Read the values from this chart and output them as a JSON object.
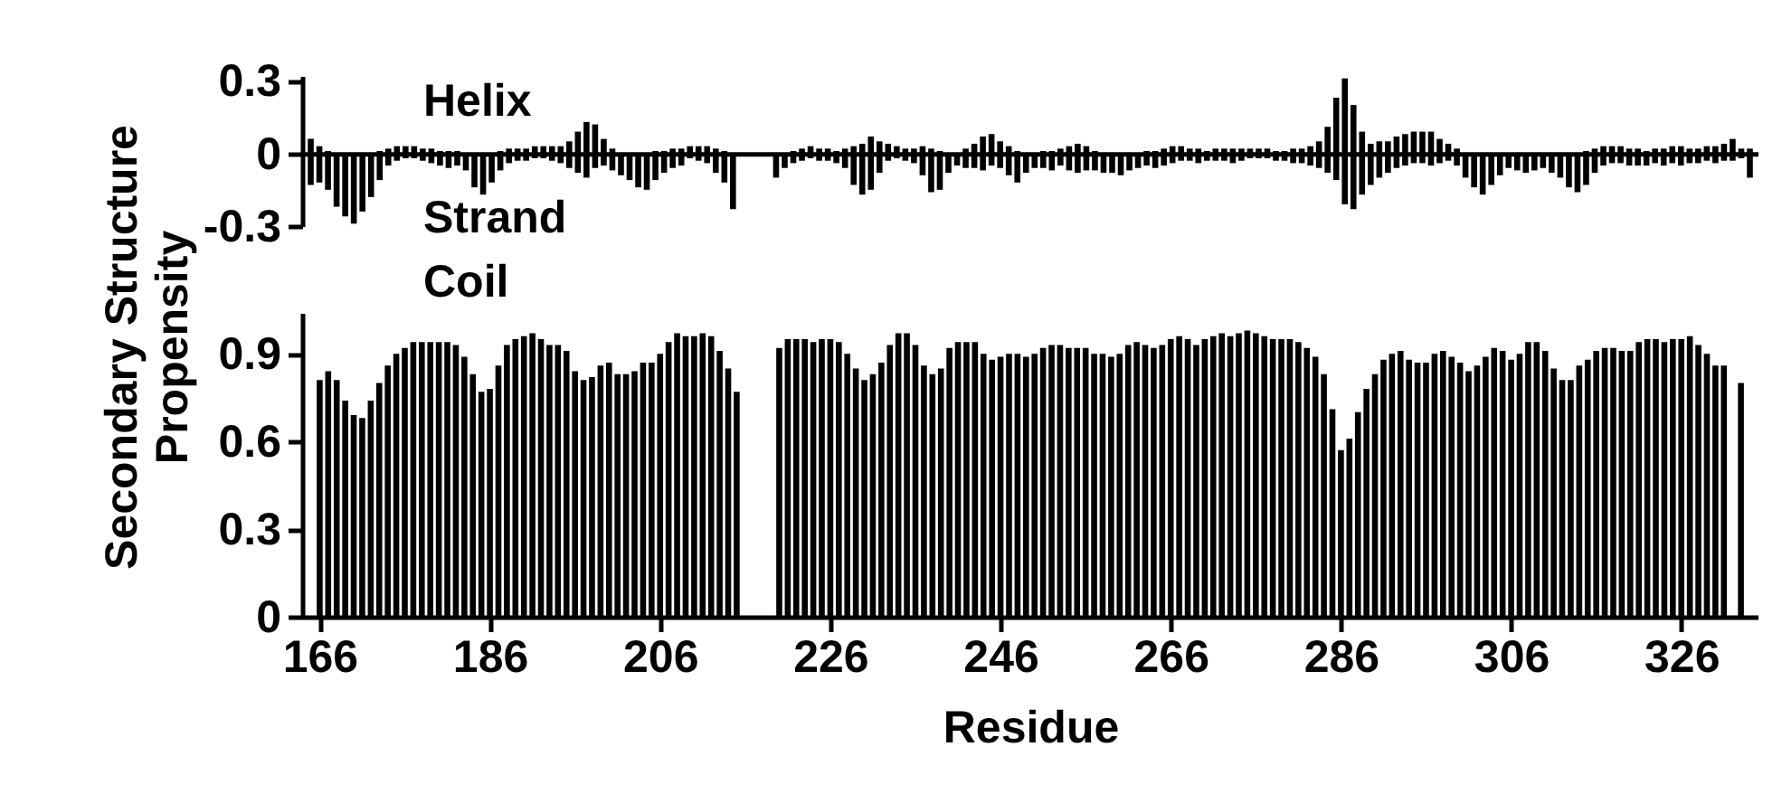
{
  "chart_data": [
    {
      "type": "bar",
      "stacked": true,
      "ylim": [
        -0.3,
        0.32
      ],
      "yticks": [
        -0.3,
        0,
        0.3
      ],
      "tick_labels": "y",
      "categories": [
        null,
        null,
        null,
        null,
        null,
        null,
        null,
        null,
        null,
        null,
        null,
        null,
        null,
        null,
        null,
        null,
        null,
        null,
        null,
        null,
        null,
        null,
        null,
        null,
        null,
        null,
        null,
        null,
        null,
        null,
        null,
        null,
        null,
        null,
        null,
        null,
        null,
        null,
        null,
        null,
        null,
        null,
        null,
        null,
        null,
        null,
        null,
        null,
        null,
        null,
        null,
        null,
        null,
        null,
        null,
        null,
        null,
        null,
        null,
        null,
        null,
        null,
        null,
        null,
        null,
        null,
        null,
        null,
        null,
        null,
        null,
        null,
        null,
        null,
        null,
        null,
        null,
        null,
        null,
        null,
        null,
        null,
        null,
        null,
        null,
        null,
        null,
        null,
        null,
        null,
        null,
        null,
        null,
        null,
        null,
        null,
        null,
        null,
        null,
        null,
        null,
        null,
        null,
        null,
        null,
        null,
        null,
        null,
        null,
        null,
        null,
        null,
        null,
        null,
        null,
        null,
        null,
        null,
        null,
        null,
        null,
        null,
        null,
        null,
        null,
        null,
        null,
        null,
        null,
        null,
        null,
        null,
        null,
        null,
        null,
        null,
        null,
        null,
        null,
        null,
        null,
        null,
        null,
        null,
        null,
        null,
        null,
        null,
        null,
        null,
        null,
        null,
        null,
        null,
        null,
        null,
        null,
        null,
        null,
        null,
        null,
        null,
        null,
        null,
        null,
        null,
        null,
        null
      ],
      "series": [
        {
          "name": "Helix",
          "color": "#000000",
          "values": [
            0.06,
            0.03,
            0.01,
            null,
            null,
            null,
            null,
            null,
            0.01,
            0.02,
            0.03,
            0.03,
            0.03,
            0.02,
            0.02,
            0.01,
            0.01,
            0.01,
            null,
            null,
            null,
            null,
            0.01,
            0.02,
            0.02,
            0.02,
            0.03,
            0.03,
            0.03,
            0.03,
            0.05,
            0.09,
            0.13,
            0.12,
            0.06,
            0.02,
            null,
            null,
            null,
            null,
            0.01,
            0.01,
            0.02,
            0.02,
            0.03,
            0.03,
            0.03,
            0.02,
            0.01,
            null,
            null,
            null,
            null,
            null,
            null,
            null,
            0.01,
            0.02,
            0.03,
            0.02,
            0.02,
            0.01,
            0.02,
            0.03,
            0.04,
            0.07,
            0.05,
            0.04,
            0.03,
            0.02,
            0.02,
            0.03,
            0.02,
            0.01,
            null,
            null,
            0.02,
            0.04,
            0.07,
            0.08,
            0.05,
            0.03,
            0.01,
            null,
            null,
            0.01,
            0.01,
            0.02,
            0.03,
            0.04,
            0.03,
            0.01,
            null,
            null,
            null,
            null,
            null,
            0.01,
            0.01,
            0.02,
            0.03,
            0.03,
            0.02,
            0.02,
            0.01,
            0.02,
            0.02,
            0.02,
            0.02,
            0.02,
            0.02,
            0.02,
            0.01,
            0.01,
            0.02,
            0.02,
            0.03,
            0.05,
            0.11,
            0.23,
            0.31,
            0.2,
            0.09,
            0.04,
            0.05,
            0.05,
            0.07,
            0.08,
            0.09,
            0.09,
            0.09,
            0.06,
            0.04,
            0.02,
            null,
            null,
            null,
            null,
            null,
            null,
            null,
            null,
            null,
            null,
            null,
            null,
            null,
            null,
            0.01,
            0.02,
            0.03,
            0.03,
            0.03,
            0.02,
            0.02,
            0.01,
            0.02,
            0.02,
            0.03,
            0.03,
            0.02,
            0.02,
            0.03,
            0.03,
            0.04,
            0.06,
            0.02,
            0.02
          ]
        },
        {
          "name": "Strand",
          "color": "#000000",
          "values": [
            -0.13,
            -0.12,
            -0.15,
            -0.22,
            -0.26,
            -0.29,
            -0.24,
            -0.18,
            -0.11,
            -0.05,
            -0.03,
            -0.02,
            -0.02,
            -0.03,
            -0.04,
            -0.05,
            -0.06,
            -0.05,
            -0.07,
            -0.14,
            -0.17,
            -0.12,
            -0.07,
            -0.04,
            -0.03,
            -0.03,
            -0.02,
            -0.02,
            -0.03,
            -0.04,
            -0.06,
            -0.08,
            -0.1,
            -0.06,
            -0.05,
            -0.07,
            -0.09,
            -0.11,
            -0.14,
            -0.15,
            -0.11,
            -0.08,
            -0.06,
            -0.05,
            -0.02,
            -0.03,
            -0.04,
            -0.08,
            -0.12,
            -0.23,
            null,
            null,
            null,
            null,
            -0.1,
            -0.06,
            -0.04,
            -0.03,
            -0.02,
            -0.03,
            -0.03,
            -0.04,
            -0.06,
            -0.13,
            -0.17,
            -0.15,
            -0.08,
            -0.03,
            -0.02,
            -0.03,
            -0.04,
            -0.09,
            -0.16,
            -0.15,
            -0.08,
            -0.05,
            -0.06,
            -0.06,
            -0.07,
            -0.05,
            -0.06,
            -0.09,
            -0.12,
            -0.08,
            -0.06,
            -0.06,
            -0.07,
            -0.05,
            -0.07,
            -0.08,
            -0.07,
            -0.07,
            -0.08,
            -0.08,
            -0.09,
            -0.07,
            -0.06,
            -0.05,
            -0.06,
            -0.05,
            -0.04,
            -0.03,
            -0.03,
            -0.04,
            -0.03,
            -0.03,
            -0.03,
            -0.04,
            -0.03,
            -0.02,
            -0.02,
            -0.02,
            -0.03,
            -0.03,
            -0.04,
            -0.04,
            -0.05,
            -0.06,
            -0.08,
            -0.11,
            -0.21,
            -0.23,
            -0.17,
            -0.13,
            -0.1,
            -0.08,
            -0.06,
            -0.05,
            -0.04,
            -0.04,
            -0.05,
            -0.04,
            -0.03,
            -0.05,
            -0.1,
            -0.14,
            -0.17,
            -0.13,
            -0.09,
            -0.06,
            -0.07,
            -0.08,
            -0.07,
            -0.06,
            -0.08,
            -0.1,
            -0.14,
            -0.16,
            -0.13,
            -0.08,
            -0.05,
            -0.04,
            -0.04,
            -0.05,
            -0.05,
            -0.05,
            -0.04,
            -0.05,
            -0.04,
            -0.05,
            -0.04,
            -0.04,
            -0.03,
            -0.04,
            -0.03,
            -0.03,
            -0.02,
            -0.1
          ]
        }
      ]
    },
    {
      "type": "bar",
      "xlim": [
        165,
        334
      ],
      "xticks": [
        166,
        186,
        206,
        226,
        246,
        266,
        286,
        306,
        326
      ],
      "ylim": [
        0,
        1.04
      ],
      "yticks": [
        0,
        0.3,
        0.6,
        0.9
      ],
      "xlabel": "Residue",
      "ylabel": "Secondary Structure Propensity",
      "x": [
        166,
        167,
        168,
        169,
        170,
        171,
        172,
        173,
        174,
        175,
        176,
        177,
        178,
        179,
        180,
        181,
        182,
        183,
        184,
        185,
        186,
        187,
        188,
        189,
        190,
        191,
        192,
        193,
        194,
        195,
        196,
        197,
        198,
        199,
        200,
        201,
        202,
        203,
        204,
        205,
        206,
        207,
        208,
        209,
        210,
        211,
        212,
        213,
        214,
        215,
        216,
        217,
        218,
        219,
        220,
        221,
        222,
        223,
        224,
        225,
        226,
        227,
        228,
        229,
        230,
        231,
        232,
        233,
        234,
        235,
        236,
        237,
        238,
        239,
        240,
        241,
        242,
        243,
        244,
        245,
        246,
        247,
        248,
        249,
        250,
        251,
        252,
        253,
        254,
        255,
        256,
        257,
        258,
        259,
        260,
        261,
        262,
        263,
        264,
        265,
        266,
        267,
        268,
        269,
        270,
        271,
        272,
        273,
        274,
        275,
        276,
        277,
        278,
        279,
        280,
        281,
        282,
        283,
        284,
        285,
        286,
        287,
        288,
        289,
        290,
        291,
        292,
        293,
        294,
        295,
        296,
        297,
        298,
        299,
        300,
        301,
        302,
        303,
        304,
        305,
        306,
        307,
        308,
        309,
        310,
        311,
        312,
        313,
        314,
        315,
        316,
        317,
        318,
        319,
        320,
        321,
        322,
        323,
        324,
        325,
        326,
        327,
        328,
        329,
        330,
        331,
        332,
        333
      ],
      "series": [
        {
          "name": "Coil",
          "color": "#000000",
          "values": [
            0.81,
            0.84,
            0.81,
            0.74,
            0.69,
            0.68,
            0.74,
            0.8,
            0.86,
            0.9,
            0.92,
            0.94,
            0.94,
            0.94,
            0.94,
            0.94,
            0.93,
            0.89,
            0.83,
            0.77,
            0.78,
            0.86,
            0.93,
            0.95,
            0.96,
            0.97,
            0.95,
            0.93,
            0.93,
            0.91,
            0.84,
            0.81,
            0.82,
            0.86,
            0.87,
            0.83,
            0.83,
            0.84,
            0.87,
            0.87,
            0.9,
            0.94,
            0.97,
            0.96,
            0.96,
            0.97,
            0.96,
            0.91,
            0.85,
            0.77,
            null,
            null,
            null,
            null,
            0.92,
            0.95,
            0.95,
            0.95,
            0.94,
            0.95,
            0.95,
            0.94,
            0.9,
            0.85,
            0.81,
            0.83,
            0.87,
            0.93,
            0.97,
            0.97,
            0.93,
            0.86,
            0.83,
            0.85,
            0.92,
            0.94,
            0.94,
            0.94,
            0.9,
            0.88,
            0.89,
            0.9,
            0.9,
            0.89,
            0.9,
            0.92,
            0.93,
            0.93,
            0.92,
            0.92,
            0.92,
            0.9,
            0.9,
            0.89,
            0.9,
            0.93,
            0.94,
            0.93,
            0.92,
            0.93,
            0.95,
            0.96,
            0.95,
            0.93,
            0.95,
            0.96,
            0.97,
            0.96,
            0.97,
            0.98,
            0.97,
            0.96,
            0.95,
            0.95,
            0.95,
            0.94,
            0.92,
            0.89,
            0.83,
            0.71,
            0.57,
            0.61,
            0.7,
            0.78,
            0.83,
            0.88,
            0.9,
            0.91,
            0.88,
            0.87,
            0.87,
            0.9,
            0.91,
            0.89,
            0.87,
            0.84,
            0.86,
            0.89,
            0.92,
            0.91,
            0.88,
            0.9,
            0.94,
            0.94,
            0.91,
            0.85,
            0.81,
            0.81,
            0.86,
            0.88,
            0.91,
            0.92,
            0.92,
            0.91,
            0.91,
            0.94,
            0.95,
            0.95,
            0.94,
            0.95,
            0.95,
            0.96,
            0.93,
            0.9,
            0.86,
            0.86,
            null,
            0.8
          ]
        }
      ]
    }
  ]
}
